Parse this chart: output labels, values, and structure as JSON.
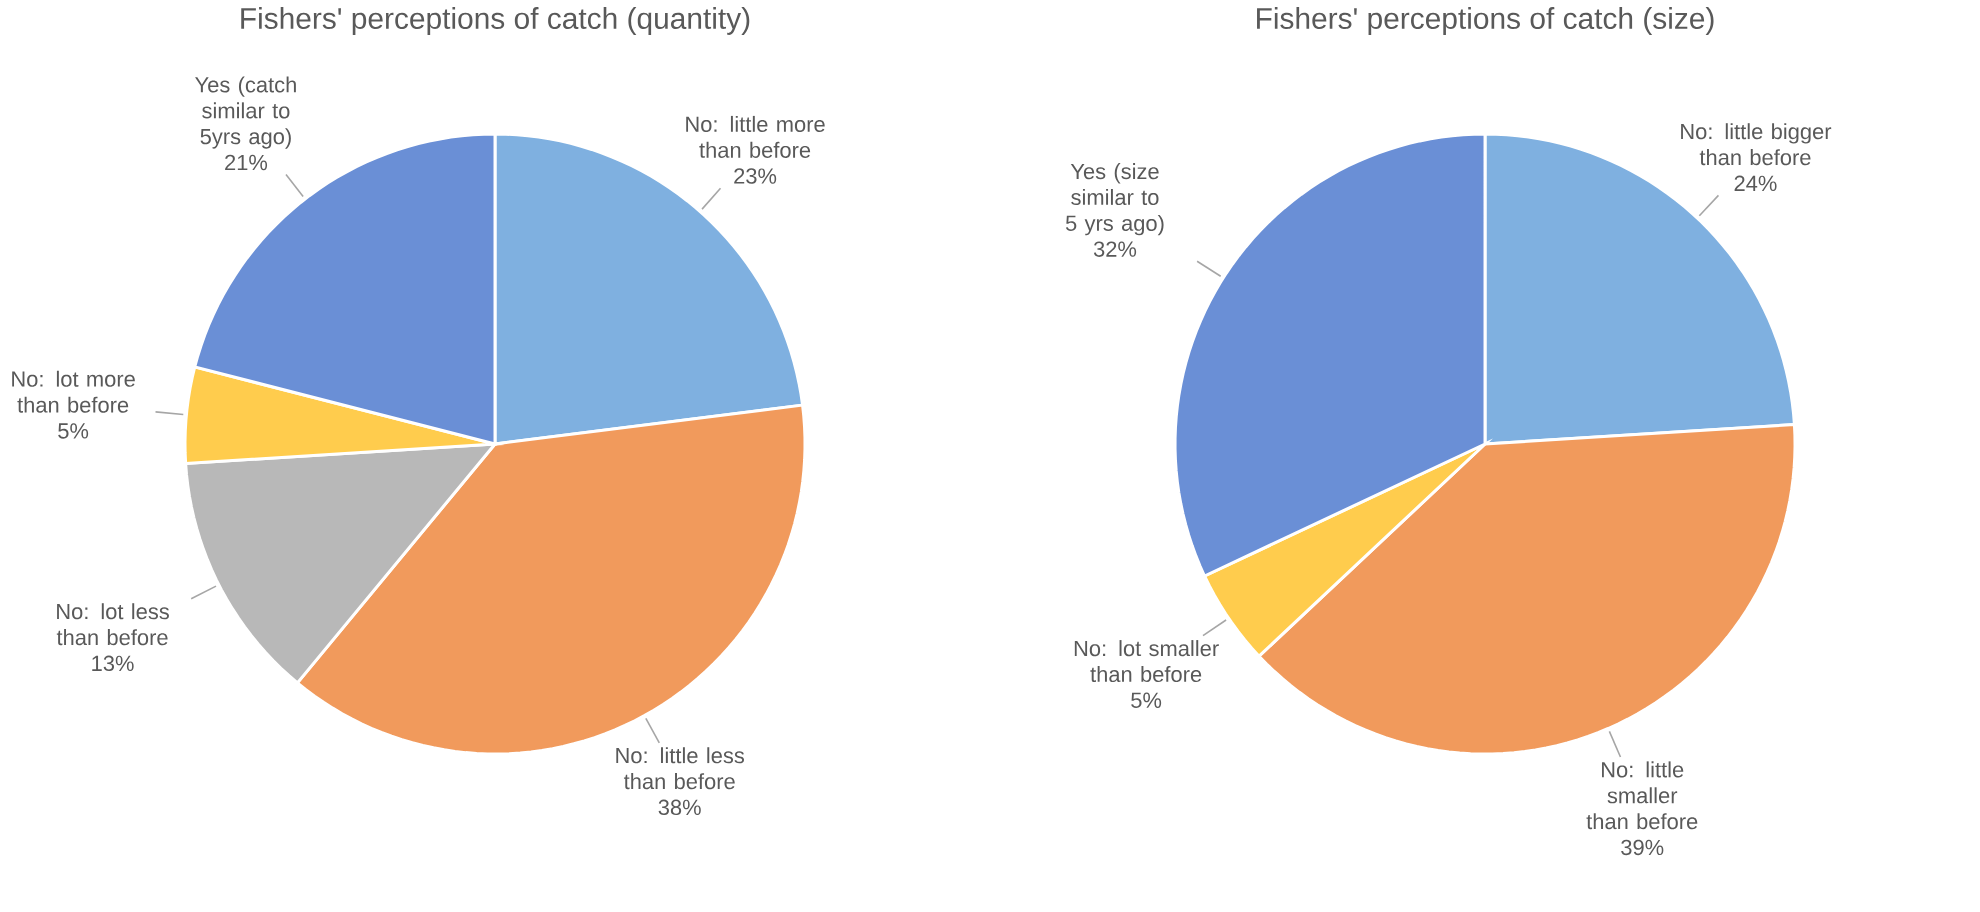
{
  "chart_data": [
    {
      "type": "pie",
      "title": "Fishers' perceptions of catch (quantity)",
      "categories": [
        "No: little more than before",
        "No: little less than before",
        "No: lot less than before",
        "No: lot more than before",
        "Yes (catch similar to 5yrs ago)"
      ],
      "values": [
        23,
        38,
        13,
        5,
        21
      ],
      "value_labels": [
        "23%",
        "38%",
        "13%",
        "5%",
        "21%"
      ],
      "colors": [
        "#7fb0e0",
        "#f19a5c",
        "#b8b8b8",
        "#ffcc4d",
        "#6a8fd6"
      ]
    },
    {
      "type": "pie",
      "title": "Fishers' perceptions of catch (size)",
      "categories": [
        "No: little bigger than before",
        "No: little smaller than before",
        "No: lot smaller than before",
        "Yes (size similar to 5 yrs ago)"
      ],
      "values": [
        24,
        39,
        5,
        32
      ],
      "value_labels": [
        "24%",
        "39%",
        "5%",
        "32%"
      ],
      "colors": [
        "#7fb0e0",
        "#f19a5c",
        "#ffcc4d",
        "#6a8fd6"
      ]
    }
  ]
}
